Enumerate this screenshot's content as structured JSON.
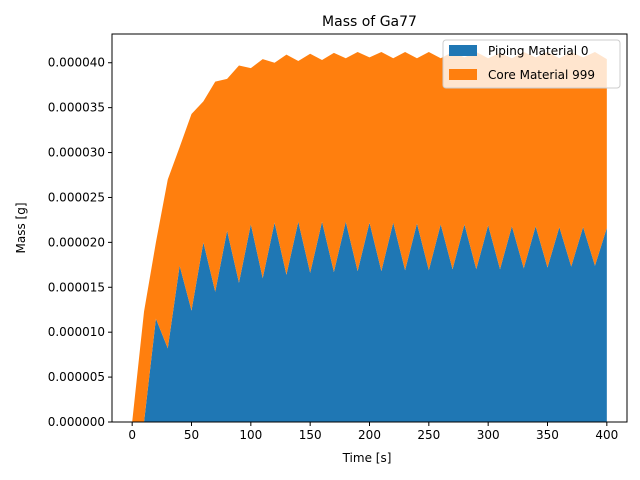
{
  "chart_data": {
    "type": "area",
    "stacked": true,
    "title": "Mass of Ga77",
    "xlabel": "Time [s]",
    "ylabel": "Mass [g]",
    "xlim": [
      -17,
      417
    ],
    "ylim": [
      0,
      4.32e-05
    ],
    "x_ticks": [
      0,
      50,
      100,
      150,
      200,
      250,
      300,
      350,
      400
    ],
    "x_tick_labels": [
      "0",
      "50",
      "100",
      "150",
      "200",
      "250",
      "300",
      "350",
      "400"
    ],
    "y_ticks": [
      0,
      5e-06,
      1e-05,
      1.5e-05,
      2e-05,
      2.5e-05,
      3e-05,
      3.5e-05,
      4e-05
    ],
    "y_tick_labels": [
      "0.000000",
      "0.000005",
      "0.000010",
      "0.000015",
      "0.000020",
      "0.000025",
      "0.000030",
      "0.000035",
      "0.000040"
    ],
    "grid": false,
    "legend_position": "top-right",
    "x": [
      0,
      10,
      20,
      30,
      40,
      50,
      60,
      70,
      80,
      90,
      100,
      110,
      120,
      130,
      140,
      150,
      160,
      170,
      180,
      190,
      200,
      210,
      220,
      230,
      240,
      250,
      260,
      270,
      280,
      290,
      300,
      310,
      320,
      330,
      340,
      350,
      360,
      370,
      380,
      390,
      400
    ],
    "series": [
      {
        "name": "Piping Material 0",
        "color": "#1f77b4",
        "values": [
          0,
          0,
          1.15e-05,
          8.2e-06,
          1.74e-05,
          1.24e-05,
          2e-05,
          1.45e-05,
          2.13e-05,
          1.55e-05,
          2.2e-05,
          1.6e-05,
          2.22e-05,
          1.64e-05,
          2.23e-05,
          1.66e-05,
          2.23e-05,
          1.67e-05,
          2.23e-05,
          1.68e-05,
          2.22e-05,
          1.68e-05,
          2.22e-05,
          1.69e-05,
          2.21e-05,
          1.69e-05,
          2.2e-05,
          1.7e-05,
          2.2e-05,
          1.7e-05,
          2.19e-05,
          1.7e-05,
          2.18e-05,
          1.71e-05,
          2.18e-05,
          1.72e-05,
          2.17e-05,
          1.73e-05,
          2.17e-05,
          1.74e-05,
          2.16e-05
        ]
      },
      {
        "name": "Core Material 999",
        "color": "#ff7f0e",
        "values": [
          0,
          1.23e-05,
          8.5e-06,
          1.88e-05,
          1.32e-05,
          2.19e-05,
          1.57e-05,
          2.34e-05,
          1.69e-05,
          2.42e-05,
          1.74e-05,
          2.44e-05,
          1.78e-05,
          2.45e-05,
          1.79e-05,
          2.44e-05,
          1.8e-05,
          2.44e-05,
          1.82e-05,
          2.44e-05,
          1.84e-05,
          2.44e-05,
          1.83e-05,
          2.43e-05,
          1.84e-05,
          2.43e-05,
          1.85e-05,
          2.42e-05,
          1.86e-05,
          2.42e-05,
          1.86e-05,
          2.41e-05,
          1.87e-05,
          2.41e-05,
          1.88e-05,
          2.4e-05,
          1.88e-05,
          2.39e-05,
          1.89e-05,
          2.38e-05,
          1.88e-05
        ]
      }
    ]
  }
}
